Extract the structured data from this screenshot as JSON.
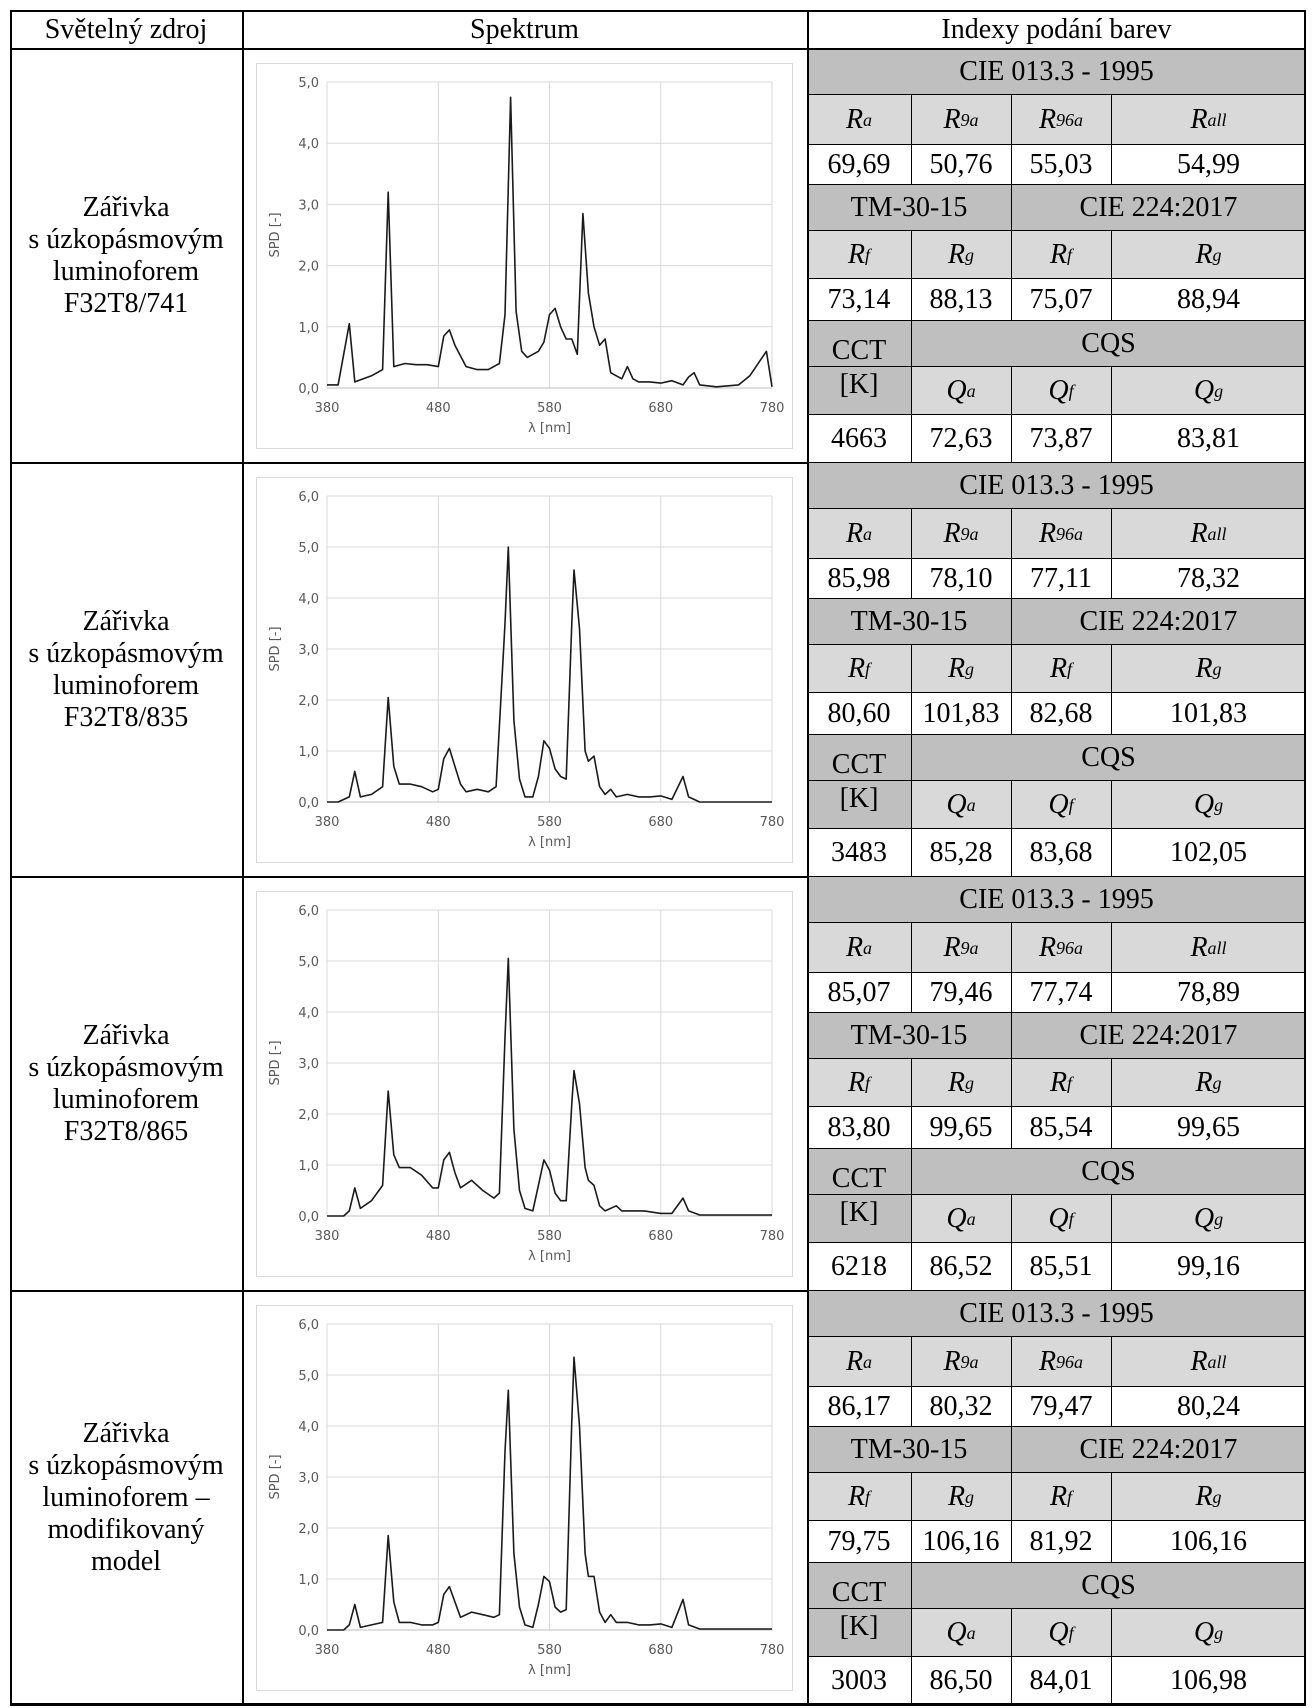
{
  "header": {
    "col_source": "Světelný zdroj",
    "col_spectrum": "Spektrum",
    "col_indices": "Indexy podání barev"
  },
  "labels": {
    "cie1995": "CIE 013.3 - 1995",
    "tm30": "TM-30-15",
    "cie224": "CIE 224:2017",
    "cct": "CCT",
    "cct_unit": "[K]",
    "cqs": "CQS",
    "ra_base": "R",
    "ra_sub": "a",
    "r9a_base": "R",
    "r9a_sub": "9a",
    "r96a_base": "R",
    "r96a_sub": "96a",
    "rall_base": "R",
    "rall_sub": "all",
    "rf_base": "R",
    "rf_sub": "f",
    "rg_base": "R",
    "rg_sub": "g",
    "qa_base": "Q",
    "qa_sub": "a",
    "qf_base": "Q",
    "qf_sub": "f",
    "qg_base": "Q",
    "qg_sub": "g"
  },
  "rows": [
    {
      "source_lines": [
        "Zářivka",
        "s úzkopásmovým",
        "luminoforem",
        "F32T8/741"
      ],
      "ra": "69,69",
      "r9a": "50,76",
      "r96a": "55,03",
      "rall": "54,99",
      "tm_rf": "73,14",
      "tm_rg": "88,13",
      "cie_rf": "75,07",
      "cie_rg": "88,94",
      "cct": "4663",
      "qa": "72,63",
      "qf": "73,87",
      "qg": "83,81"
    },
    {
      "source_lines": [
        "Zářivka",
        "s úzkopásmovým",
        "luminoforem",
        "F32T8/835"
      ],
      "ra": "85,98",
      "r9a": "78,10",
      "r96a": "77,11",
      "rall": "78,32",
      "tm_rf": "80,60",
      "tm_rg": "101,83",
      "cie_rf": "82,68",
      "cie_rg": "101,83",
      "cct": "3483",
      "qa": "85,28",
      "qf": "83,68",
      "qg": "102,05"
    },
    {
      "source_lines": [
        "Zářivka",
        "s úzkopásmovým",
        "luminoforem",
        "F32T8/865"
      ],
      "ra": "85,07",
      "r9a": "79,46",
      "r96a": "77,74",
      "rall": "78,89",
      "tm_rf": "83,80",
      "tm_rg": "99,65",
      "cie_rf": "85,54",
      "cie_rg": "99,65",
      "cct": "6218",
      "qa": "86,52",
      "qf": "85,51",
      "qg": "99,16"
    },
    {
      "source_lines": [
        "Zářivka",
        "s úzkopásmovým",
        "luminoforem –",
        "modifikovaný",
        "model"
      ],
      "ra": "86,17",
      "r9a": "80,32",
      "r96a": "79,47",
      "rall": "80,24",
      "tm_rf": "79,75",
      "tm_rg": "106,16",
      "cie_rf": "81,92",
      "cie_rg": "106,16",
      "cct": "3003",
      "qa": "86,50",
      "qf": "84,01",
      "qg": "106,98"
    }
  ],
  "chart_data": [
    {
      "type": "line",
      "xlabel": "λ [nm]",
      "ylabel": "SPD [-]",
      "xlim": [
        380,
        780
      ],
      "ylim": [
        0,
        5
      ],
      "xticks": [
        "380",
        "480",
        "580",
        "680",
        "780"
      ],
      "yticks": [
        "0,0",
        "1,0",
        "2,0",
        "3,0",
        "4,0",
        "5,0"
      ],
      "grid": "vertical",
      "series": [
        {
          "points": [
            [
              380,
              0.05
            ],
            [
              390,
              0.05
            ],
            [
              400,
              1.05
            ],
            [
              405,
              0.1
            ],
            [
              420,
              0.2
            ],
            [
              430,
              0.3
            ],
            [
              435,
              3.2
            ],
            [
              440,
              0.35
            ],
            [
              450,
              0.4
            ],
            [
              460,
              0.38
            ],
            [
              470,
              0.38
            ],
            [
              480,
              0.35
            ],
            [
              485,
              0.85
            ],
            [
              490,
              0.95
            ],
            [
              495,
              0.7
            ],
            [
              505,
              0.35
            ],
            [
              515,
              0.3
            ],
            [
              525,
              0.3
            ],
            [
              535,
              0.4
            ],
            [
              540,
              1.2
            ],
            [
              545,
              4.75
            ],
            [
              550,
              1.25
            ],
            [
              555,
              0.6
            ],
            [
              560,
              0.5
            ],
            [
              570,
              0.6
            ],
            [
              575,
              0.75
            ],
            [
              580,
              1.2
            ],
            [
              585,
              1.3
            ],
            [
              590,
              1.0
            ],
            [
              595,
              0.8
            ],
            [
              600,
              0.8
            ],
            [
              605,
              0.55
            ],
            [
              610,
              2.85
            ],
            [
              615,
              1.55
            ],
            [
              620,
              1.0
            ],
            [
              625,
              0.7
            ],
            [
              630,
              0.8
            ],
            [
              635,
              0.25
            ],
            [
              640,
              0.2
            ],
            [
              645,
              0.15
            ],
            [
              650,
              0.35
            ],
            [
              655,
              0.15
            ],
            [
              660,
              0.1
            ],
            [
              670,
              0.1
            ],
            [
              680,
              0.08
            ],
            [
              690,
              0.12
            ],
            [
              700,
              0.05
            ],
            [
              705,
              0.18
            ],
            [
              710,
              0.25
            ],
            [
              715,
              0.05
            ],
            [
              730,
              0.02
            ],
            [
              750,
              0.05
            ],
            [
              760,
              0.2
            ],
            [
              775,
              0.6
            ],
            [
              780,
              0.02
            ]
          ]
        }
      ]
    },
    {
      "type": "line",
      "xlabel": "λ [nm]",
      "ylabel": "SPD [-]",
      "xlim": [
        380,
        780
      ],
      "ylim": [
        0,
        6
      ],
      "xticks": [
        "380",
        "480",
        "580",
        "680",
        "780"
      ],
      "yticks": [
        "0,0",
        "1,0",
        "2,0",
        "3,0",
        "4,0",
        "5,0",
        "6,0"
      ],
      "grid": "vertical",
      "series": [
        {
          "points": [
            [
              380,
              0.0
            ],
            [
              390,
              0.0
            ],
            [
              400,
              0.1
            ],
            [
              405,
              0.6
            ],
            [
              410,
              0.1
            ],
            [
              420,
              0.15
            ],
            [
              430,
              0.3
            ],
            [
              435,
              2.05
            ],
            [
              440,
              0.7
            ],
            [
              445,
              0.35
            ],
            [
              455,
              0.35
            ],
            [
              465,
              0.3
            ],
            [
              475,
              0.2
            ],
            [
              480,
              0.25
            ],
            [
              485,
              0.85
            ],
            [
              490,
              1.05
            ],
            [
              495,
              0.7
            ],
            [
              500,
              0.35
            ],
            [
              505,
              0.2
            ],
            [
              515,
              0.25
            ],
            [
              525,
              0.2
            ],
            [
              532,
              0.3
            ],
            [
              540,
              3.5
            ],
            [
              543,
              5.0
            ],
            [
              548,
              1.6
            ],
            [
              553,
              0.45
            ],
            [
              558,
              0.1
            ],
            [
              565,
              0.1
            ],
            [
              570,
              0.5
            ],
            [
              575,
              1.2
            ],
            [
              580,
              1.05
            ],
            [
              585,
              0.65
            ],
            [
              590,
              0.5
            ],
            [
              595,
              0.45
            ],
            [
              600,
              3.5
            ],
            [
              602,
              4.55
            ],
            [
              607,
              3.4
            ],
            [
              612,
              1.0
            ],
            [
              615,
              0.8
            ],
            [
              620,
              0.9
            ],
            [
              625,
              0.3
            ],
            [
              630,
              0.15
            ],
            [
              635,
              0.25
            ],
            [
              640,
              0.1
            ],
            [
              650,
              0.15
            ],
            [
              660,
              0.1
            ],
            [
              670,
              0.1
            ],
            [
              680,
              0.12
            ],
            [
              690,
              0.05
            ],
            [
              700,
              0.5
            ],
            [
              705,
              0.1
            ],
            [
              715,
              0.0
            ],
            [
              780,
              0.0
            ]
          ]
        }
      ]
    },
    {
      "type": "line",
      "xlabel": "λ [nm]",
      "ylabel": "SPD [-]",
      "xlim": [
        380,
        780
      ],
      "ylim": [
        0,
        6
      ],
      "xticks": [
        "380",
        "480",
        "580",
        "680",
        "780"
      ],
      "yticks": [
        "0,0",
        "1,0",
        "2,0",
        "3,0",
        "4,0",
        "5,0",
        "6,0"
      ],
      "grid": "vertical",
      "series": [
        {
          "points": [
            [
              380,
              0.0
            ],
            [
              395,
              0.0
            ],
            [
              400,
              0.1
            ],
            [
              405,
              0.55
            ],
            [
              410,
              0.15
            ],
            [
              420,
              0.3
            ],
            [
              430,
              0.6
            ],
            [
              435,
              2.45
            ],
            [
              440,
              1.2
            ],
            [
              445,
              0.95
            ],
            [
              455,
              0.95
            ],
            [
              465,
              0.8
            ],
            [
              475,
              0.55
            ],
            [
              480,
              0.55
            ],
            [
              485,
              1.1
            ],
            [
              490,
              1.25
            ],
            [
              495,
              0.85
            ],
            [
              500,
              0.55
            ],
            [
              510,
              0.7
            ],
            [
              520,
              0.5
            ],
            [
              530,
              0.35
            ],
            [
              535,
              0.45
            ],
            [
              540,
              3.5
            ],
            [
              543,
              5.05
            ],
            [
              548,
              1.7
            ],
            [
              553,
              0.5
            ],
            [
              558,
              0.15
            ],
            [
              565,
              0.1
            ],
            [
              570,
              0.6
            ],
            [
              575,
              1.1
            ],
            [
              580,
              0.9
            ],
            [
              585,
              0.45
            ],
            [
              590,
              0.3
            ],
            [
              595,
              0.3
            ],
            [
              600,
              2.2
            ],
            [
              602,
              2.85
            ],
            [
              607,
              2.2
            ],
            [
              612,
              0.95
            ],
            [
              615,
              0.7
            ],
            [
              620,
              0.6
            ],
            [
              625,
              0.2
            ],
            [
              630,
              0.1
            ],
            [
              640,
              0.2
            ],
            [
              645,
              0.1
            ],
            [
              655,
              0.1
            ],
            [
              665,
              0.1
            ],
            [
              680,
              0.05
            ],
            [
              690,
              0.05
            ],
            [
              700,
              0.35
            ],
            [
              705,
              0.1
            ],
            [
              715,
              0.02
            ],
            [
              780,
              0.02
            ]
          ]
        }
      ]
    },
    {
      "type": "line",
      "xlabel": "λ [nm]",
      "ylabel": "SPD [-]",
      "xlim": [
        380,
        780
      ],
      "ylim": [
        0,
        6
      ],
      "xticks": [
        "380",
        "480",
        "580",
        "680",
        "780"
      ],
      "yticks": [
        "0,0",
        "1,0",
        "2,0",
        "3,0",
        "4,0",
        "5,0",
        "6,0"
      ],
      "grid": "vertical",
      "series": [
        {
          "points": [
            [
              380,
              0.0
            ],
            [
              395,
              0.0
            ],
            [
              400,
              0.1
            ],
            [
              405,
              0.5
            ],
            [
              410,
              0.05
            ],
            [
              420,
              0.1
            ],
            [
              430,
              0.15
            ],
            [
              435,
              1.85
            ],
            [
              440,
              0.55
            ],
            [
              445,
              0.15
            ],
            [
              455,
              0.15
            ],
            [
              465,
              0.1
            ],
            [
              475,
              0.1
            ],
            [
              480,
              0.15
            ],
            [
              485,
              0.7
            ],
            [
              490,
              0.85
            ],
            [
              495,
              0.55
            ],
            [
              500,
              0.25
            ],
            [
              510,
              0.35
            ],
            [
              520,
              0.3
            ],
            [
              530,
              0.25
            ],
            [
              535,
              0.3
            ],
            [
              540,
              3.5
            ],
            [
              543,
              4.7
            ],
            [
              548,
              1.5
            ],
            [
              553,
              0.45
            ],
            [
              558,
              0.1
            ],
            [
              565,
              0.05
            ],
            [
              570,
              0.5
            ],
            [
              575,
              1.05
            ],
            [
              580,
              0.95
            ],
            [
              585,
              0.45
            ],
            [
              590,
              0.35
            ],
            [
              595,
              0.4
            ],
            [
              600,
              4.1
            ],
            [
              602,
              5.35
            ],
            [
              607,
              4.0
            ],
            [
              612,
              1.5
            ],
            [
              615,
              1.05
            ],
            [
              620,
              1.05
            ],
            [
              625,
              0.35
            ],
            [
              630,
              0.15
            ],
            [
              635,
              0.3
            ],
            [
              640,
              0.15
            ],
            [
              650,
              0.15
            ],
            [
              660,
              0.1
            ],
            [
              670,
              0.1
            ],
            [
              680,
              0.12
            ],
            [
              690,
              0.05
            ],
            [
              700,
              0.6
            ],
            [
              705,
              0.1
            ],
            [
              715,
              0.02
            ],
            [
              780,
              0.02
            ]
          ]
        }
      ]
    }
  ]
}
